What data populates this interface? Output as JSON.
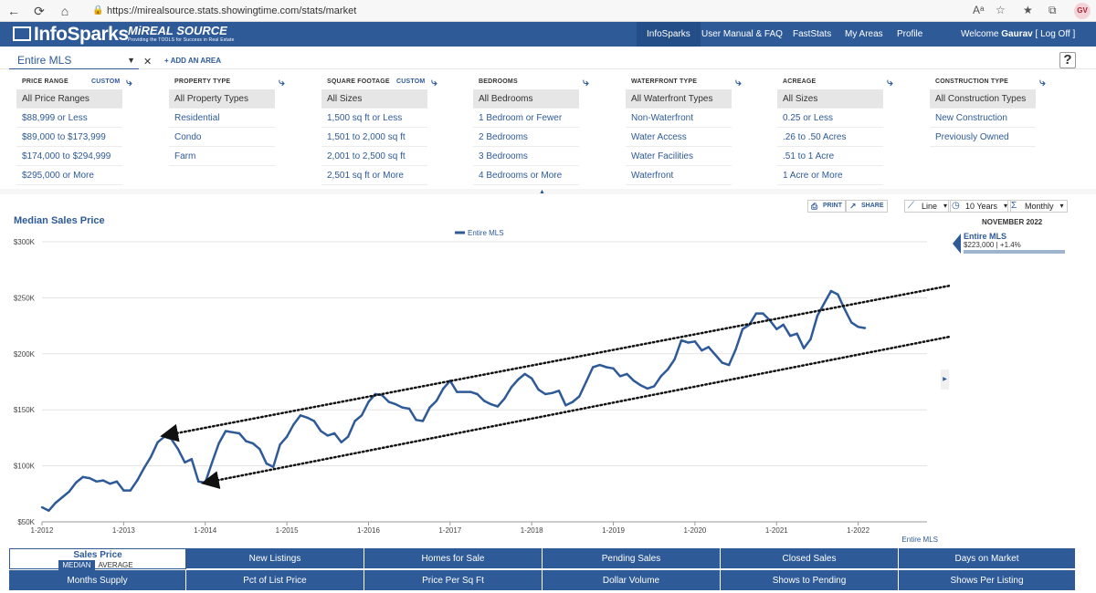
{
  "browser": {
    "url": "https://mirealsource.stats.showingtime.com/stats/market",
    "avatar": "GV"
  },
  "header": {
    "logo_text": "InfoSparks",
    "brand": "MiREAL SOURCE",
    "brand_tagline": "Providing the TOOLS for Success in Real Estate",
    "nav": [
      "InfoSparks",
      "User Manual & FAQ",
      "FastStats",
      "My Areas",
      "Profile"
    ],
    "welcome_prefix": "Welcome",
    "user": "Gaurav",
    "logoff": "[ Log Off ]"
  },
  "area": {
    "selected": "Entire MLS",
    "add_label": "+ ADD AN AREA"
  },
  "filters": [
    {
      "title": "PRICE RANGE",
      "custom": "CUSTOM",
      "items": [
        "All Price Ranges",
        "$88,999 or Less",
        "$89,000 to $173,999",
        "$174,000 to $294,999",
        "$295,000 or More"
      ]
    },
    {
      "title": "PROPERTY TYPE",
      "custom": "",
      "items": [
        "All Property Types",
        "Residential",
        "Condo",
        "Farm"
      ]
    },
    {
      "title": "SQUARE FOOTAGE",
      "custom": "CUSTOM",
      "items": [
        "All Sizes",
        "1,500 sq ft or Less",
        "1,501 to 2,000 sq ft",
        "2,001 to 2,500 sq ft",
        "2,501 sq ft or More"
      ]
    },
    {
      "title": "BEDROOMS",
      "custom": "",
      "items": [
        "All Bedrooms",
        "1 Bedroom or Fewer",
        "2 Bedrooms",
        "3 Bedrooms",
        "4 Bedrooms or More"
      ]
    },
    {
      "title": "WATERFRONT TYPE",
      "custom": "",
      "items": [
        "All Waterfront Types",
        "Non-Waterfront",
        "Water Access",
        "Water Facilities",
        "Waterfront"
      ]
    },
    {
      "title": "ACREAGE",
      "custom": "",
      "items": [
        "All Sizes",
        "0.25 or Less",
        ".26 to .50 Acres",
        ".51 to 1 Acre",
        "1 Acre or More"
      ]
    },
    {
      "title": "CONSTRUCTION TYPE",
      "custom": "",
      "items": [
        "All Construction Types",
        "New Construction",
        "Previously Owned"
      ]
    }
  ],
  "toolbar": {
    "print": "PRINT",
    "share": "SHARE",
    "chart_type": "Line",
    "range": "10 Years",
    "period": "Monthly"
  },
  "side": {
    "date": "NOVEMBER 2022",
    "label": "Entire MLS",
    "value": "$223,000 | +1.4%"
  },
  "chart_data": {
    "type": "line",
    "title": "Median Sales Price",
    "legend": [
      "Entire MLS"
    ],
    "source_note": "Entire MLS",
    "color": "#2e5a98",
    "y_ticks": [
      "$50K",
      "$100K",
      "$150K",
      "$200K",
      "$250K",
      "$300K"
    ],
    "ylim": [
      50000,
      300000
    ],
    "x_ticks": [
      "1-2012",
      "1-2013",
      "1-2014",
      "1-2015",
      "1-2016",
      "1-2017",
      "1-2018",
      "1-2019",
      "1-2020",
      "1-2021",
      "1-2022"
    ],
    "x_start": "1-2012",
    "series": [
      {
        "name": "Entire MLS",
        "values": [
          63000,
          60000,
          67000,
          72000,
          77000,
          85000,
          90000,
          89000,
          86000,
          87000,
          84000,
          86000,
          78000,
          78000,
          87000,
          98000,
          108000,
          121000,
          126000,
          124000,
          115000,
          103000,
          106000,
          86000,
          85000,
          103000,
          120000,
          131000,
          130000,
          129000,
          122000,
          120000,
          115000,
          102000,
          99000,
          119000,
          126000,
          137000,
          145000,
          143000,
          140000,
          131000,
          127000,
          129000,
          121000,
          126000,
          140000,
          145000,
          157000,
          164000,
          163000,
          157000,
          155000,
          152000,
          151000,
          141000,
          140000,
          152000,
          158000,
          169000,
          176000,
          166000,
          166000,
          166000,
          164000,
          158000,
          155000,
          153000,
          160000,
          170000,
          177000,
          182000,
          178000,
          168000,
          164000,
          165000,
          167000,
          154000,
          157000,
          162000,
          175000,
          188000,
          190000,
          188000,
          187000,
          180000,
          182000,
          176000,
          172000,
          169000,
          171000,
          180000,
          186000,
          195000,
          212000,
          210000,
          211000,
          203000,
          206000,
          199000,
          192000,
          190000,
          204000,
          222000,
          226000,
          236000,
          236000,
          230000,
          222000,
          226000,
          216000,
          218000,
          205000,
          213000,
          234000,
          245000,
          256000,
          253000,
          240000,
          228000,
          224000,
          223000
        ]
      }
    ],
    "annotations": [
      {
        "type": "trend-arrow",
        "from": {
          "x": "2013-07",
          "y": 127000
        },
        "to": {
          "x": "2024-01",
          "y": 273000
        }
      },
      {
        "type": "trend-arrow",
        "from": {
          "x": "2014-01",
          "y": 85000
        },
        "to": {
          "x": "2024-02",
          "y": 229000
        }
      }
    ]
  },
  "metrics": {
    "active": {
      "label": "Sales Price",
      "opt_on": "MEDIAN",
      "opt_off": "AVERAGE"
    },
    "row1": [
      "New Listings",
      "Homes for Sale",
      "Pending Sales",
      "Closed Sales",
      "Days on Market"
    ],
    "row2": [
      "Months Supply",
      "Pct of List Price",
      "Price Per Sq Ft",
      "Dollar Volume",
      "Shows to Pending",
      "Shows Per Listing"
    ]
  }
}
